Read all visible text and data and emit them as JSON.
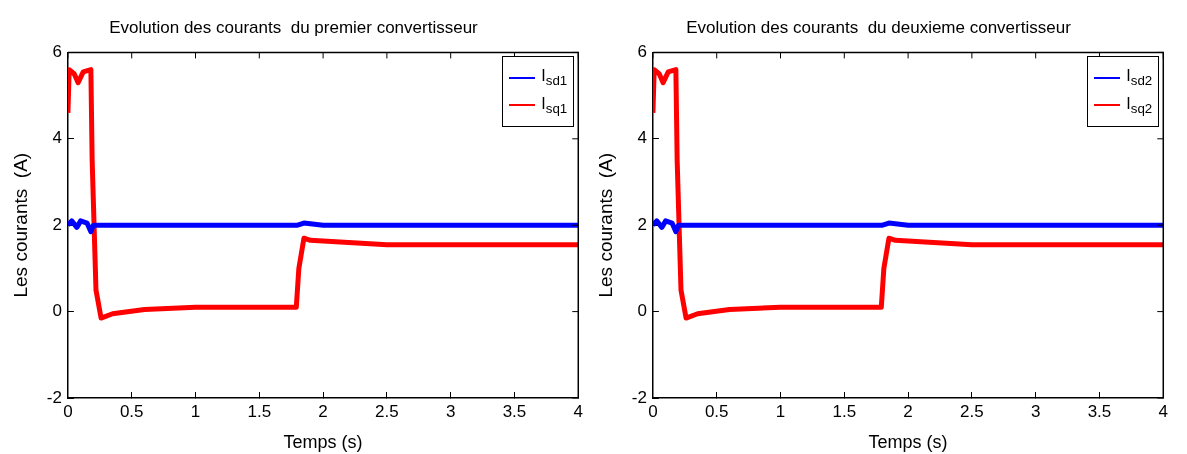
{
  "chart_data": [
    {
      "type": "line",
      "title": "Evolution des courants  du premier convertisseur",
      "xlabel": "Temps (s)",
      "ylabel": "Les courants  (A)",
      "xlim": [
        0,
        4
      ],
      "ylim": [
        -2,
        6
      ],
      "xticks": [
        0,
        0.5,
        1,
        1.5,
        2,
        2.5,
        3,
        3.5,
        4
      ],
      "yticks": [
        -2,
        0,
        2,
        4,
        6
      ],
      "grid": false,
      "legend": "top right",
      "marker": "none",
      "line_style": "solid",
      "series": [
        {
          "name": "I$_{sd1}$",
          "color": "#0000ff",
          "x": [
            0,
            0.03,
            0.07,
            0.1,
            0.15,
            0.18,
            0.2,
            0.5,
            1,
            1.5,
            1.8,
            1.85,
            2,
            3,
            4
          ],
          "values": [
            2.0,
            2.1,
            1.95,
            2.1,
            2.05,
            1.85,
            2.0,
            2.0,
            2.0,
            2.0,
            2.0,
            2.05,
            2.0,
            2.0,
            2.0
          ]
        },
        {
          "name": "I$_{sq1}$",
          "color": "#ff0000",
          "x": [
            0,
            0.01,
            0.05,
            0.08,
            0.12,
            0.18,
            0.19,
            0.22,
            0.26,
            0.35,
            0.6,
            1,
            1.79,
            1.81,
            1.85,
            1.9,
            2.5,
            4
          ],
          "values": [
            4.6,
            5.6,
            5.5,
            5.3,
            5.55,
            5.6,
            3.5,
            0.5,
            -0.15,
            -0.05,
            0.05,
            0.1,
            0.1,
            1.0,
            1.7,
            1.65,
            1.55,
            1.55
          ]
        }
      ]
    },
    {
      "type": "line",
      "title": "Evolution des courants  du deuxieme convertisseur",
      "xlabel": "Temps (s)",
      "ylabel": "Les courants  (A)",
      "xlim": [
        0,
        4
      ],
      "ylim": [
        -2,
        6
      ],
      "xticks": [
        0,
        0.5,
        1,
        1.5,
        2,
        2.5,
        3,
        3.5,
        4
      ],
      "yticks": [
        -2,
        0,
        2,
        4,
        6
      ],
      "grid": false,
      "legend": "top right",
      "marker": "none",
      "line_style": "solid",
      "series": [
        {
          "name": "I$_{sd2}$",
          "color": "#0000ff",
          "x": [
            0,
            0.03,
            0.07,
            0.1,
            0.15,
            0.18,
            0.2,
            0.5,
            1,
            1.5,
            1.8,
            1.85,
            2,
            3,
            4
          ],
          "values": [
            2.0,
            2.1,
            1.95,
            2.1,
            2.05,
            1.85,
            2.0,
            2.0,
            2.0,
            2.0,
            2.0,
            2.05,
            2.0,
            2.0,
            2.0
          ]
        },
        {
          "name": "I$_{sq2}$",
          "color": "#ff0000",
          "x": [
            0,
            0.01,
            0.05,
            0.08,
            0.12,
            0.18,
            0.19,
            0.22,
            0.26,
            0.35,
            0.6,
            1,
            1.79,
            1.81,
            1.85,
            1.9,
            2.5,
            4
          ],
          "values": [
            4.6,
            5.6,
            5.5,
            5.3,
            5.55,
            5.6,
            3.5,
            0.5,
            -0.15,
            -0.05,
            0.05,
            0.1,
            0.1,
            1.0,
            1.7,
            1.65,
            1.55,
            1.55
          ]
        }
      ]
    }
  ]
}
